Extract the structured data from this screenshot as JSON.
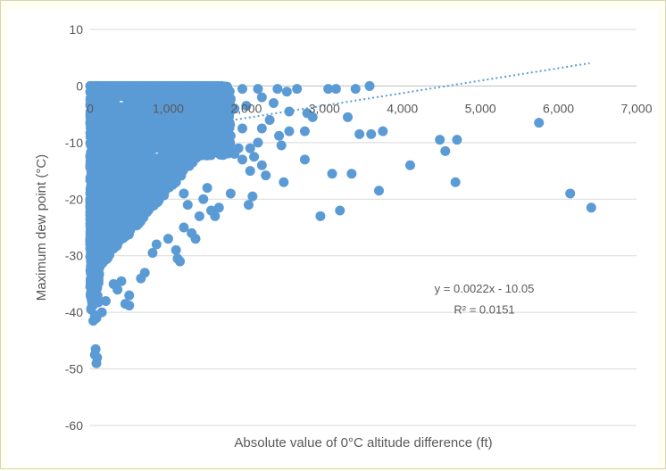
{
  "chart_data": {
    "type": "scatter",
    "xlabel": "Absolute value of 0°C altitude difference (ft)",
    "ylabel": "Maximum dew point  (°C)",
    "xlim": [
      0,
      7000
    ],
    "ylim": [
      -60,
      10
    ],
    "x_ticks": [
      "0",
      "1,000",
      "2,000",
      "3,000",
      "4,000",
      "5,000",
      "6,000",
      "7,000"
    ],
    "y_ticks": [
      "10",
      "0",
      "-10",
      "-20",
      "-30",
      "-40",
      "-50",
      "-60"
    ],
    "grid": "horizontal",
    "marker_color": "#5b9bd5",
    "trendline": {
      "type": "linear",
      "slope": 0.0022,
      "intercept": -10.05,
      "x_range": [
        0,
        6400
      ],
      "color": "#5b9bd5",
      "equation_label": "y = 0.0022x - 10.05",
      "r2_label": "R² = 0.0151"
    },
    "points": [
      [
        3580,
        0
      ],
      [
        3150,
        -0.5
      ],
      [
        3050,
        -0.5
      ],
      [
        2650,
        -0.5
      ],
      [
        2520,
        -1
      ],
      [
        2400,
        -0.5
      ],
      [
        2150,
        -0.5
      ],
      [
        1950,
        -0.5
      ],
      [
        1750,
        -0.5
      ],
      [
        2780,
        -4.8
      ],
      [
        2850,
        -5.5
      ],
      [
        3300,
        -5.5
      ],
      [
        3400,
        -0.5
      ],
      [
        2550,
        -4.5
      ],
      [
        3450,
        -8.5
      ],
      [
        3600,
        -8.5
      ],
      [
        3750,
        -8
      ],
      [
        2420,
        -8.8
      ],
      [
        2200,
        -7.5
      ],
      [
        2550,
        -8
      ],
      [
        2750,
        -8
      ],
      [
        4480,
        -9.5
      ],
      [
        4700,
        -9.5
      ],
      [
        4550,
        -11.5
      ],
      [
        5750,
        -6.5
      ],
      [
        4100,
        -14
      ],
      [
        4680,
        -17
      ],
      [
        3700,
        -18.5
      ],
      [
        3100,
        -15.5
      ],
      [
        3350,
        -15.5
      ],
      [
        2480,
        -17
      ],
      [
        2050,
        -15
      ],
      [
        2200,
        -14
      ],
      [
        2250,
        -15.8
      ],
      [
        6150,
        -19
      ],
      [
        6420,
        -21.5
      ],
      [
        3200,
        -22
      ],
      [
        2950,
        -23
      ],
      [
        2080,
        -19.5
      ],
      [
        2030,
        -21
      ],
      [
        1800,
        -19
      ],
      [
        1650,
        -21.5
      ],
      [
        1600,
        -23
      ],
      [
        2450,
        -10.5
      ],
      [
        2150,
        -10
      ],
      [
        2050,
        -11
      ],
      [
        1900,
        -11
      ],
      [
        2100,
        -12.5
      ],
      [
        2750,
        -13
      ],
      [
        1950,
        -13
      ],
      [
        1850,
        -12
      ],
      [
        1750,
        -9.8
      ],
      [
        1300,
        -26
      ],
      [
        1350,
        -27
      ],
      [
        1200,
        -25
      ],
      [
        1100,
        -29
      ],
      [
        1120,
        -30.5
      ],
      [
        1150,
        -31
      ],
      [
        1000,
        -27
      ],
      [
        850,
        -28
      ],
      [
        800,
        -29.5
      ],
      [
        700,
        -33
      ],
      [
        650,
        -34
      ],
      [
        500,
        -37
      ],
      [
        400,
        -34.5
      ],
      [
        450,
        -38.5
      ],
      [
        500,
        -38.8
      ],
      [
        350,
        -36
      ],
      [
        300,
        -35
      ],
      [
        200,
        -38
      ],
      [
        150,
        -40
      ],
      [
        80,
        -41
      ],
      [
        60,
        -40.5
      ],
      [
        40,
        -41.5
      ],
      [
        70,
        -46.5
      ],
      [
        90,
        -48
      ],
      [
        80,
        -49
      ],
      [
        60,
        -47.5
      ],
      [
        1400,
        -23
      ],
      [
        1450,
        -20
      ],
      [
        1500,
        -18
      ],
      [
        1550,
        -22
      ],
      [
        1250,
        -21
      ],
      [
        1200,
        -19
      ],
      [
        1100,
        -17
      ],
      [
        2350,
        -3
      ],
      [
        2200,
        -2
      ],
      [
        2000,
        -3.5
      ],
      [
        1850,
        -4
      ],
      [
        1700,
        -5
      ],
      [
        1600,
        -2.5
      ],
      [
        2300,
        -6
      ],
      [
        1950,
        -7.5
      ],
      [
        1800,
        -8.8
      ]
    ]
  }
}
